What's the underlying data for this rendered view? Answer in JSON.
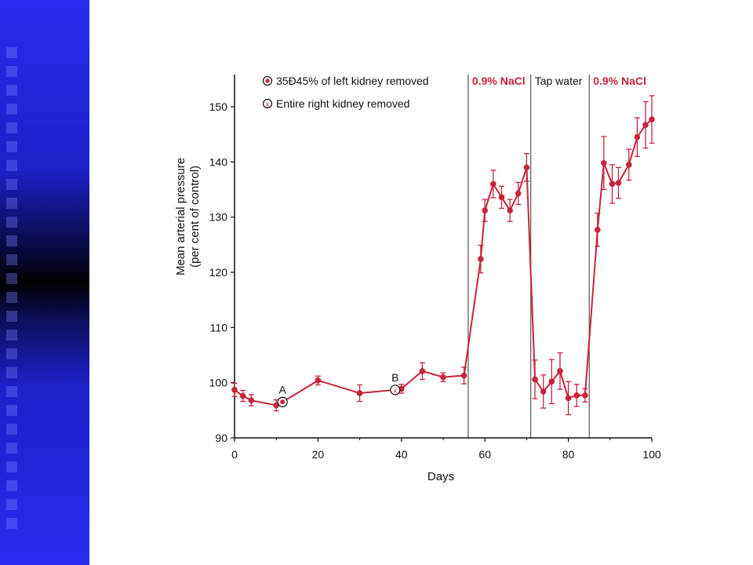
{
  "chart_data": {
    "type": "line",
    "ylabel_line1": "Mean arterial pressure",
    "ylabel_line2": "(per cent of control)",
    "xlabel": "Days",
    "xlim": [
      0,
      100
    ],
    "ylim": [
      90,
      155
    ],
    "x_ticks": [
      0,
      20,
      40,
      60,
      80,
      100
    ],
    "y_ticks": [
      90,
      100,
      110,
      120,
      130,
      140,
      150
    ],
    "series_color": "#c8243c",
    "legend": [
      {
        "marker": "dot",
        "label": "35Ð45% of left kidney removed"
      },
      {
        "marker": "x",
        "label": "Entire right kidney removed"
      }
    ],
    "phase_dividers": [
      56,
      71,
      85
    ],
    "phases": [
      {
        "label": "0.9% NaCl",
        "start": 56,
        "end": 71,
        "style": "nacl"
      },
      {
        "label": "Tap water",
        "start": 71,
        "end": 85,
        "style": "tap"
      },
      {
        "label": "0.9% NaCl",
        "start": 85,
        "end": 100,
        "style": "nacl"
      }
    ],
    "annotations": [
      {
        "label": "A",
        "x": 11.5,
        "y": 96.5,
        "marker": "dot"
      },
      {
        "label": "B",
        "x": 38.5,
        "y": 98.7,
        "marker": "x"
      }
    ],
    "points": [
      {
        "x": 0,
        "y": 98.7,
        "err": 1.2
      },
      {
        "x": 2,
        "y": 97.6,
        "err": 1.0
      },
      {
        "x": 4,
        "y": 96.8,
        "err": 1.0
      },
      {
        "x": 10,
        "y": 95.9,
        "err": 1.0
      },
      {
        "x": 11.5,
        "y": 96.5,
        "err": 0
      },
      {
        "x": 20,
        "y": 100.4,
        "err": 0.8
      },
      {
        "x": 30,
        "y": 98.1,
        "err": 1.5
      },
      {
        "x": 38.5,
        "y": 98.7,
        "err": 0
      },
      {
        "x": 40,
        "y": 98.9,
        "err": 0.8
      },
      {
        "x": 45,
        "y": 102.1,
        "err": 1.5
      },
      {
        "x": 50,
        "y": 101.0,
        "err": 0.8
      },
      {
        "x": 55,
        "y": 101.3,
        "err": 1.5
      },
      {
        "x": 59,
        "y": 122.4,
        "err": 2.5
      },
      {
        "x": 60,
        "y": 131.2,
        "err": 2.0
      },
      {
        "x": 62,
        "y": 136.0,
        "err": 2.5
      },
      {
        "x": 64,
        "y": 133.6,
        "err": 2.0
      },
      {
        "x": 66,
        "y": 131.2,
        "err": 2.0
      },
      {
        "x": 68,
        "y": 134.3,
        "err": 2.0
      },
      {
        "x": 70,
        "y": 139.0,
        "err": 2.5
      },
      {
        "x": 72,
        "y": 100.6,
        "err": 3.5
      },
      {
        "x": 74,
        "y": 98.4,
        "err": 3.0
      },
      {
        "x": 76,
        "y": 100.2,
        "err": 4.0
      },
      {
        "x": 78,
        "y": 102.1,
        "err": 3.3
      },
      {
        "x": 80,
        "y": 97.2,
        "err": 3.0
      },
      {
        "x": 82,
        "y": 97.7,
        "err": 2.0
      },
      {
        "x": 84,
        "y": 97.7,
        "err": 1.2
      },
      {
        "x": 87,
        "y": 127.7,
        "err": 3.0
      },
      {
        "x": 88.5,
        "y": 139.8,
        "err": 4.8
      },
      {
        "x": 90.5,
        "y": 136.0,
        "err": 3.5
      },
      {
        "x": 92,
        "y": 136.2,
        "err": 2.8
      },
      {
        "x": 94.5,
        "y": 139.5,
        "err": 2.8
      },
      {
        "x": 96.5,
        "y": 144.5,
        "err": 3.5
      },
      {
        "x": 98.5,
        "y": 146.7,
        "err": 4.2
      },
      {
        "x": 100,
        "y": 147.7,
        "err": 4.3
      }
    ]
  }
}
